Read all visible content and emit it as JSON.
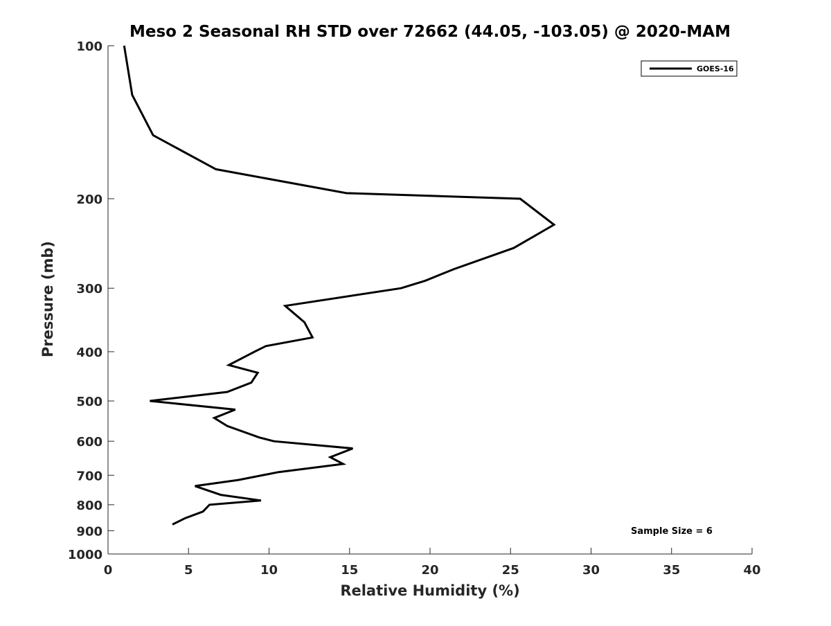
{
  "chart_data": {
    "type": "line",
    "title": "Meso 2 Seasonal RH STD over 72662 (44.05, -103.05) @ 2020-MAM",
    "xlabel": "Relative Humidity (%)",
    "ylabel": "Pressure (mb)",
    "xlim": [
      0,
      40
    ],
    "ylim": [
      100,
      1000
    ],
    "yscale": "log",
    "y_reversed": true,
    "x_ticks": [
      "0",
      "5",
      "10",
      "15",
      "20",
      "25",
      "30",
      "35",
      "40"
    ],
    "y_ticks": [
      "100",
      "200",
      "300",
      "400",
      "500",
      "600",
      "700",
      "800",
      "900",
      "1000"
    ],
    "grid": false,
    "legend_position": "top-right",
    "annotation": "Sample Size = 6",
    "series": [
      {
        "name": "GOES-16",
        "color": "#000000",
        "x": [
          1.0,
          1.5,
          2.8,
          6.7,
          14.8,
          25.6,
          27.7,
          25.2,
          21.5,
          19.7,
          18.2,
          11.0,
          12.2,
          12.7,
          9.8,
          9.1,
          7.5,
          9.3,
          8.9,
          7.4,
          2.6,
          7.9,
          6.6,
          7.4,
          9.4,
          10.3,
          15.2,
          13.8,
          14.6,
          10.6,
          8.1,
          5.4,
          7.0,
          9.5,
          6.3,
          5.9,
          4.8,
          4.0
        ],
        "y": [
          100,
          125,
          150,
          175,
          195,
          200,
          225,
          250,
          275,
          290,
          300,
          325,
          350,
          375,
          390,
          400,
          425,
          440,
          460,
          480,
          500,
          520,
          540,
          560,
          590,
          600,
          620,
          645,
          665,
          690,
          715,
          735,
          765,
          785,
          800,
          825,
          850,
          875
        ]
      }
    ]
  }
}
